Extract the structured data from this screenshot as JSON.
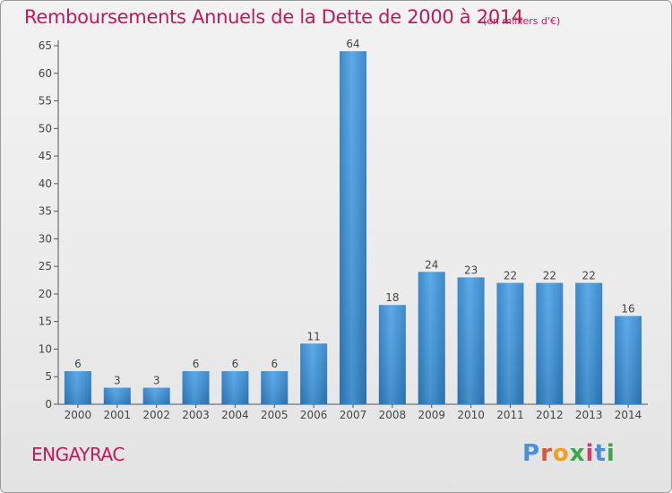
{
  "header": {
    "title": "Remboursements Annuels de la Dette de 2000 à 2014",
    "subtitle": "(en milliers d'€)"
  },
  "footer": {
    "place": "ENGAYRAC",
    "logo": "Proxiti"
  },
  "colors": {
    "title": "#c2185b",
    "bar": "#3d8fd1",
    "logo_letters": [
      "#4a8fd8",
      "#e0553a",
      "#f0a020",
      "#3aa84a",
      "#d63a6a",
      "#4a8fd8",
      "#3aa84a"
    ]
  },
  "chart_data": {
    "type": "bar",
    "categories": [
      "2000",
      "2001",
      "2002",
      "2003",
      "2004",
      "2005",
      "2006",
      "2007",
      "2008",
      "2009",
      "2010",
      "2011",
      "2012",
      "2013",
      "2014"
    ],
    "values": [
      6,
      3,
      3,
      6,
      6,
      6,
      11,
      64,
      18,
      24,
      23,
      22,
      22,
      22,
      16
    ],
    "data_labels": [
      "6",
      "3",
      "3",
      "6",
      "6",
      "6",
      "11",
      "64",
      "18",
      "24",
      "23",
      "22",
      "22",
      "22",
      "16"
    ],
    "yticks": [
      0,
      5,
      10,
      15,
      20,
      25,
      30,
      35,
      40,
      45,
      50,
      55,
      60,
      65
    ],
    "ylim": [
      0,
      65
    ],
    "grid": false,
    "legend": "none"
  }
}
